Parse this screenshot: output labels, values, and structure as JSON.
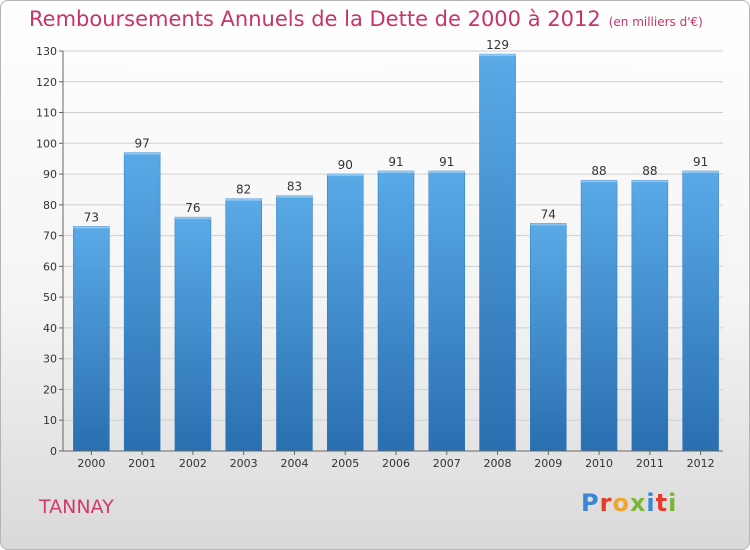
{
  "chart_data": {
    "type": "bar",
    "title": "Remboursements Annuels de la Dette de 2000 à 2012",
    "subtitle": "(en milliers d'€)",
    "categories": [
      "2000",
      "2001",
      "2002",
      "2003",
      "2004",
      "2005",
      "2006",
      "2007",
      "2008",
      "2009",
      "2010",
      "2011",
      "2012"
    ],
    "values": [
      73,
      97,
      76,
      82,
      83,
      90,
      91,
      91,
      129,
      74,
      88,
      88,
      91
    ],
    "ylim": [
      0,
      130
    ],
    "yticks": [
      0,
      10,
      20,
      30,
      40,
      50,
      60,
      70,
      80,
      90,
      100,
      110,
      120,
      130
    ],
    "grid": true,
    "bar_color": "#3d8fd6",
    "bar_color_dark": "#2a6fb0",
    "bar_color_light": "#5aaae8"
  },
  "footer": {
    "commune": "TANNAY",
    "logo_letters": [
      "P",
      "r",
      "o",
      "x",
      "i",
      "t",
      "i"
    ],
    "logo_colors": [
      "#3a87d6",
      "#e8392d",
      "#f2a52b",
      "#7cb638",
      "#3a87d6",
      "#e8392d",
      "#7cb638"
    ]
  },
  "colors": {
    "title": "#c8336a",
    "grid": "#d0d0d0",
    "axis_text": "#333333"
  }
}
